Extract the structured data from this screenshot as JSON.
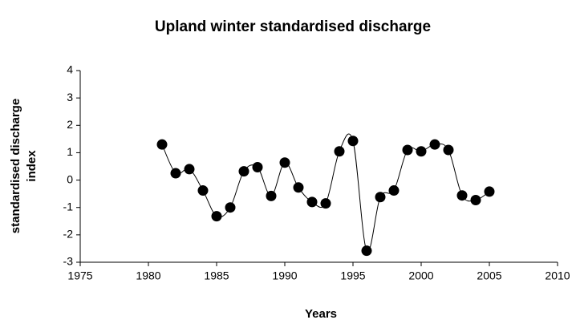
{
  "chart_data": {
    "type": "line",
    "title": "Upland winter standardised discharge",
    "xlabel": "Years",
    "ylabel": [
      "standardised discharge",
      "index"
    ],
    "x": [
      1981,
      1982,
      1983,
      1984,
      1985,
      1986,
      1987,
      1988,
      1989,
      1990,
      1991,
      1992,
      1993,
      1994,
      1995,
      1996,
      1997,
      1998,
      1999,
      2000,
      2001,
      2002,
      2003,
      2004,
      2005
    ],
    "series": [
      {
        "color": "#000000",
        "values": [
          1.3,
          0.25,
          0.4,
          -0.38,
          -1.32,
          -1.0,
          0.32,
          0.47,
          -0.58,
          0.64,
          -0.27,
          -0.8,
          -0.85,
          1.05,
          1.43,
          -2.58,
          -0.62,
          -0.38,
          1.1,
          1.05,
          1.3,
          1.1,
          -0.56,
          -0.73,
          -0.42
        ]
      }
    ],
    "xlim": [
      1975,
      2010
    ],
    "xticks": [
      1975,
      1980,
      1985,
      1990,
      1995,
      2000,
      2005,
      2010
    ],
    "ylim": [
      -3,
      4
    ],
    "yticks": [
      -3,
      -2,
      -1,
      0,
      1,
      2,
      3,
      4
    ],
    "smooth": true
  }
}
